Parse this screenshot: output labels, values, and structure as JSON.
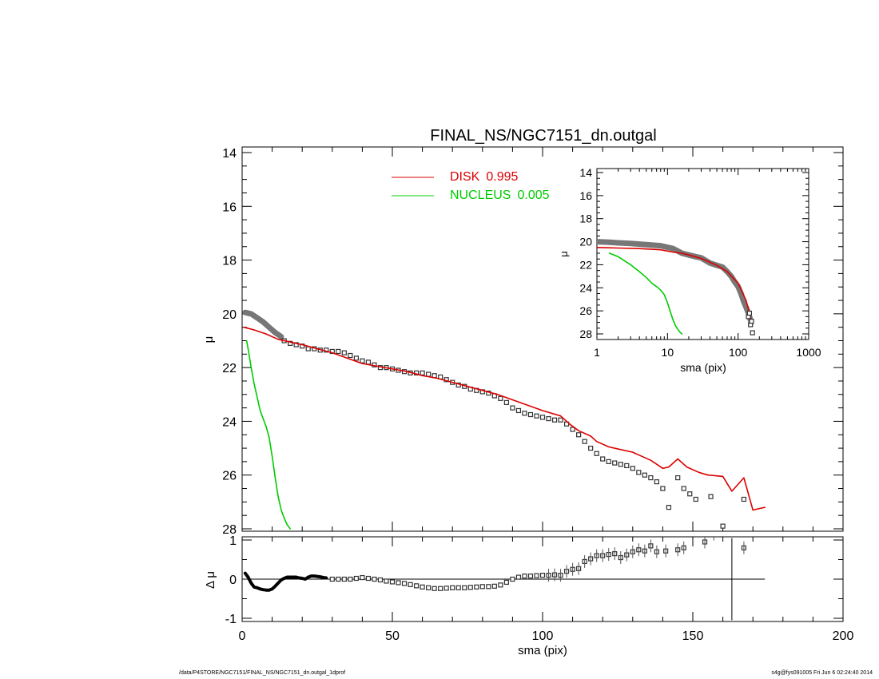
{
  "chart_data": [
    {
      "id": "main",
      "type": "line",
      "title": "FINAL_NS/NGC7151_dn.outgal",
      "xlabel": "",
      "ylabel": "μ",
      "xlim": [
        0,
        200
      ],
      "ylim": [
        28,
        14
      ],
      "y_inverted": true,
      "xticks": [
        "0",
        "50",
        "100",
        "150",
        "200"
      ],
      "yticks": [
        "14",
        "16",
        "18",
        "20",
        "22",
        "24",
        "26",
        "28"
      ],
      "legend_position": "top-center",
      "series": [
        {
          "name": "DISK",
          "legend_value": "0.995",
          "color": "#dd0000",
          "x": [
            0.6,
            4,
            8,
            12,
            16,
            20,
            25,
            30,
            35,
            40,
            45,
            50,
            55,
            60,
            65,
            70,
            75,
            80,
            85,
            90,
            95,
            100,
            106,
            109,
            112,
            116,
            118,
            122,
            126,
            130,
            133,
            136,
            140,
            142,
            145,
            148,
            152,
            155,
            160,
            163,
            167,
            170,
            174
          ],
          "y": [
            20.5,
            20.6,
            20.75,
            20.95,
            21.05,
            21.15,
            21.3,
            21.45,
            21.65,
            21.85,
            21.95,
            22.05,
            22.15,
            22.3,
            22.4,
            22.55,
            22.7,
            22.85,
            23.0,
            23.2,
            23.4,
            23.6,
            23.8,
            24.1,
            24.35,
            24.55,
            24.75,
            24.95,
            25.05,
            25.15,
            25.3,
            25.45,
            25.75,
            25.7,
            25.4,
            25.7,
            25.9,
            26.0,
            26.05,
            26.6,
            26.1,
            27.3,
            27.2
          ]
        },
        {
          "name": "NUCLEUS",
          "legend_value": "0.005",
          "color": "#00cc00",
          "x": [
            1.5,
            2,
            3,
            4,
            5,
            6,
            7,
            8,
            9,
            10,
            11,
            12,
            13,
            14,
            15,
            16
          ],
          "y": [
            21.0,
            21.3,
            22.0,
            22.6,
            23.1,
            23.6,
            23.9,
            24.2,
            24.6,
            25.3,
            26.1,
            26.8,
            27.3,
            27.6,
            27.85,
            28.0
          ]
        },
        {
          "name": "",
          "style": "thick-grey",
          "color": "#777777",
          "x": [
            1,
            3,
            5,
            7,
            9,
            11,
            13
          ],
          "y": [
            19.95,
            20.0,
            20.15,
            20.3,
            20.5,
            20.7,
            20.85
          ]
        },
        {
          "name": "",
          "style": "open-squares",
          "color": "#333333",
          "x": [
            14,
            16,
            18,
            20,
            22,
            24,
            26,
            28,
            30,
            32,
            34,
            36,
            38,
            40,
            42,
            44,
            46,
            48,
            50,
            52,
            54,
            56,
            58,
            60,
            62,
            64,
            66,
            68,
            70,
            72,
            74,
            76,
            78,
            80,
            82,
            84,
            86,
            88,
            90,
            92,
            94,
            96,
            98,
            100,
            102,
            104,
            106,
            108,
            110,
            112,
            114,
            116,
            118,
            120,
            122,
            124,
            126,
            128,
            130,
            132,
            134,
            136,
            138,
            140,
            142,
            145,
            147,
            149,
            151,
            156,
            160,
            167
          ],
          "y": [
            21.0,
            21.1,
            21.15,
            21.2,
            21.3,
            21.3,
            21.35,
            21.35,
            21.4,
            21.4,
            21.45,
            21.55,
            21.65,
            21.75,
            21.8,
            21.9,
            22.0,
            22.0,
            22.05,
            22.1,
            22.15,
            22.2,
            22.2,
            22.2,
            22.25,
            22.3,
            22.35,
            22.45,
            22.55,
            22.65,
            22.7,
            22.8,
            22.85,
            22.9,
            22.95,
            23.05,
            23.15,
            23.3,
            23.5,
            23.6,
            23.7,
            23.75,
            23.8,
            23.85,
            23.9,
            23.95,
            23.95,
            24.1,
            24.3,
            24.5,
            24.75,
            25.0,
            25.2,
            25.4,
            25.5,
            25.55,
            25.6,
            25.65,
            25.75,
            25.9,
            26.0,
            26.1,
            26.25,
            26.5,
            27.2,
            26.1,
            26.5,
            26.7,
            26.9,
            26.8,
            27.9,
            26.9
          ]
        }
      ]
    },
    {
      "id": "residual",
      "type": "scatter",
      "xlabel": "sma (pix)",
      "ylabel": "Δ μ",
      "xlim": [
        0,
        200
      ],
      "ylim": [
        -1.05,
        1.05
      ],
      "xticks": [
        "0",
        "50",
        "100",
        "150",
        "200"
      ],
      "yticks": [
        "1",
        "0",
        "-1"
      ],
      "zero_line_x": [
        0,
        174
      ],
      "series": [
        {
          "name": "",
          "style": "thick-line",
          "color": "#000000",
          "x": [
            1,
            2,
            3,
            4,
            5,
            6,
            7,
            8,
            9,
            10,
            11,
            12,
            13,
            14,
            15,
            16,
            17,
            18,
            19,
            20,
            21,
            22,
            23,
            24,
            25,
            26,
            27,
            28
          ],
          "y": [
            0.15,
            0.05,
            -0.1,
            -0.2,
            -0.22,
            -0.25,
            -0.27,
            -0.28,
            -0.28,
            -0.25,
            -0.18,
            -0.1,
            -0.02,
            0.02,
            0.05,
            0.05,
            0.05,
            0.05,
            0.03,
            0.02,
            0.0,
            0.05,
            0.08,
            0.08,
            0.07,
            0.06,
            0.04,
            0.03
          ]
        },
        {
          "name": "",
          "style": "open-squares",
          "color": "#333333",
          "x": [
            30,
            32,
            34,
            36,
            38,
            40,
            42,
            44,
            46,
            48,
            50,
            52,
            54,
            56,
            58,
            60,
            62,
            64,
            66,
            68,
            70,
            72,
            74,
            76,
            78,
            80,
            82,
            84,
            86,
            88,
            90,
            92,
            94,
            96,
            98,
            100,
            102,
            104,
            106,
            108,
            110,
            112,
            114,
            116,
            118,
            120,
            122,
            124,
            126,
            128,
            130,
            132,
            134,
            136,
            138,
            141,
            145,
            147,
            154,
            157,
            167
          ],
          "y": [
            0.0,
            0.0,
            0.0,
            0.0,
            0.02,
            0.04,
            0.02,
            0.0,
            -0.02,
            -0.05,
            -0.07,
            -0.09,
            -0.11,
            -0.14,
            -0.17,
            -0.2,
            -0.22,
            -0.24,
            -0.24,
            -0.23,
            -0.22,
            -0.22,
            -0.22,
            -0.21,
            -0.2,
            -0.19,
            -0.19,
            -0.18,
            -0.15,
            -0.08,
            0.0,
            0.05,
            0.08,
            0.08,
            0.09,
            0.1,
            0.1,
            0.11,
            0.1,
            0.2,
            0.25,
            0.27,
            0.45,
            0.52,
            0.6,
            0.6,
            0.63,
            0.65,
            0.55,
            0.62,
            0.7,
            0.75,
            0.72,
            0.85,
            0.7,
            0.72,
            0.75,
            0.8,
            0.95,
            1.15,
            0.8
          ]
        }
      ],
      "error_bar": {
        "x": 163,
        "y_low": -1.05,
        "y_high": 1.05
      }
    },
    {
      "id": "inset",
      "type": "line",
      "xlabel": "sma (pix)",
      "ylabel": "μ",
      "x_scale": "log",
      "xlim": [
        1,
        1000
      ],
      "ylim": [
        28,
        14
      ],
      "y_inverted": true,
      "xticks": [
        "1",
        "10",
        "100",
        "1000"
      ],
      "yticks": [
        "14",
        "16",
        "18",
        "20",
        "22",
        "24",
        "26",
        "28"
      ],
      "series": [
        {
          "name": "",
          "style": "thick-grey",
          "color": "#777777",
          "x": [
            1,
            1.5,
            2,
            3,
            5,
            8,
            12,
            16,
            20,
            25,
            30,
            40,
            50,
            60,
            70,
            80,
            90,
            100,
            110,
            120,
            130,
            140,
            150
          ],
          "y": [
            20.0,
            20.05,
            20.1,
            20.15,
            20.25,
            20.35,
            20.6,
            21.0,
            21.15,
            21.3,
            21.4,
            21.85,
            22.05,
            22.2,
            22.6,
            23.0,
            23.5,
            23.9,
            24.5,
            25.2,
            25.7,
            26.2,
            26.8
          ]
        },
        {
          "name": "",
          "color": "#dd0000",
          "x": [
            1,
            2,
            4,
            8,
            12,
            16,
            20,
            30,
            50,
            70,
            100,
            130,
            160
          ],
          "y": [
            20.5,
            20.55,
            20.6,
            20.7,
            20.9,
            21.0,
            21.15,
            21.45,
            22.05,
            22.6,
            23.6,
            25.1,
            27.2
          ]
        },
        {
          "name": "",
          "color": "#00cc00",
          "x": [
            1.5,
            2,
            3,
            4,
            5,
            6,
            7,
            8,
            9,
            10,
            11,
            12,
            13,
            14,
            15,
            16
          ],
          "y": [
            21.0,
            21.3,
            22.0,
            22.6,
            23.1,
            23.6,
            23.9,
            24.2,
            24.6,
            25.3,
            26.1,
            26.8,
            27.3,
            27.6,
            27.85,
            28.0
          ]
        },
        {
          "name": "",
          "style": "open-squares",
          "color": "#333333",
          "x": [
            140,
            145,
            150,
            155,
            160
          ],
          "y": [
            26.5,
            26.2,
            27.2,
            26.9,
            27.9
          ]
        }
      ]
    }
  ],
  "footer": {
    "left": "/data/P4STORE/NGC7151/FINAL_NS/NGC7151_dn.outgal_1dprof",
    "right": "s4g@fys091005  Fri Jun  6 02:24:40 2014"
  }
}
